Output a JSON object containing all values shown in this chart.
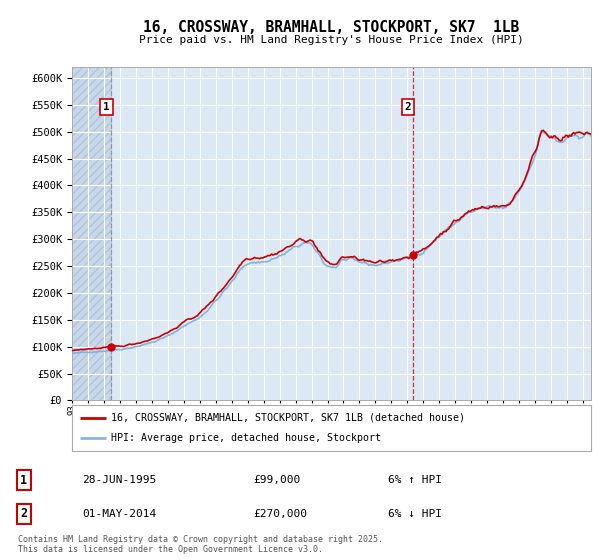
{
  "title": "16, CROSSWAY, BRAMHALL, STOCKPORT, SK7  1LB",
  "subtitle": "Price paid vs. HM Land Registry's House Price Index (HPI)",
  "bg_color": "#ffffff",
  "plot_bg_color": "#dce9f5",
  "grid_color": "#ffffff",
  "sale1_year": 1995.46,
  "sale1_price": 99000,
  "sale2_year": 2014.33,
  "sale2_price": 270000,
  "legend_label1": "16, CROSSWAY, BRAMHALL, STOCKPORT, SK7 1LB (detached house)",
  "legend_label2": "HPI: Average price, detached house, Stockport",
  "footer1": "Contains HM Land Registry data © Crown copyright and database right 2025.",
  "footer2": "This data is licensed under the Open Government Licence v3.0.",
  "table_row1": [
    "1",
    "28-JUN-1995",
    "£99,000",
    "6% ↑ HPI"
  ],
  "table_row2": [
    "2",
    "01-MAY-2014",
    "£270,000",
    "6% ↓ HPI"
  ],
  "xmin": 1993.0,
  "xmax": 2025.5,
  "ymin": 0,
  "ymax": 620000,
  "line_color_red": "#cc0000",
  "line_color_blue": "#7aade0",
  "vline1_color": "#888888",
  "vline2_color": "#cc0000",
  "marker_color": "#cc0000"
}
